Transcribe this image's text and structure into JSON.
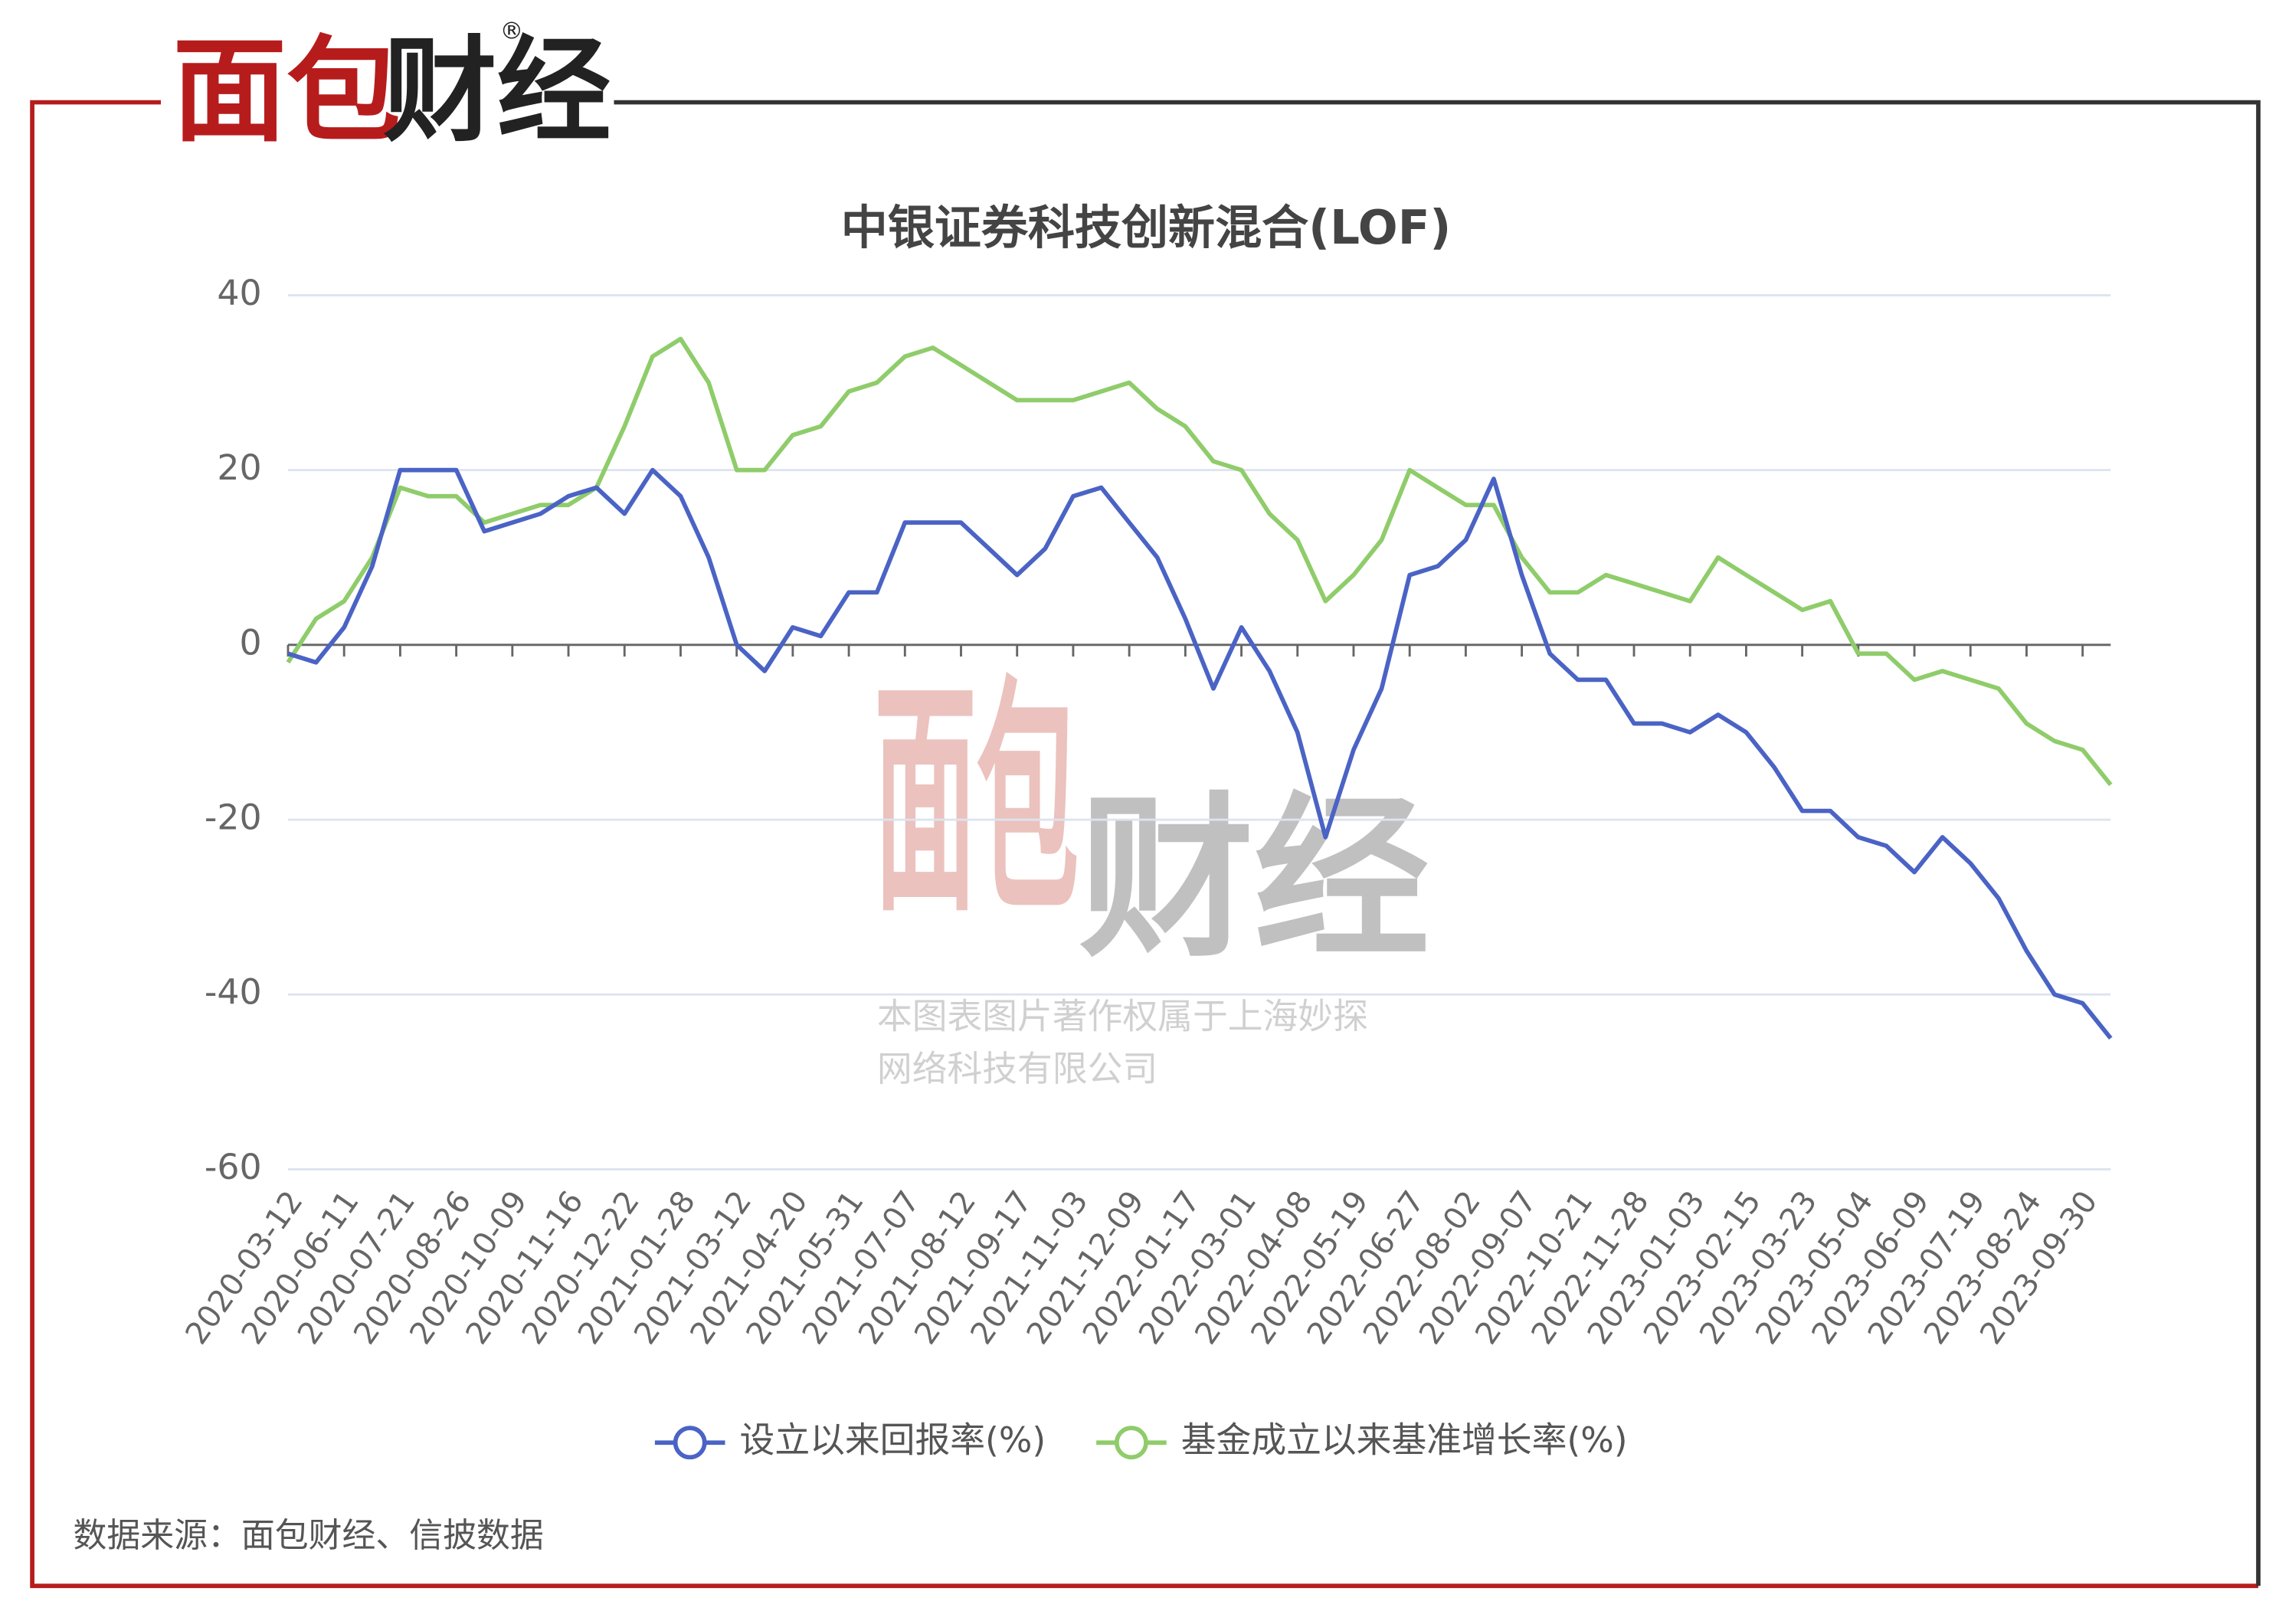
{
  "brand": {
    "red": "面包",
    "dark": "财经",
    "mark": "®"
  },
  "watermark_lines": [
    "本图表图片著作权属于上海妙探",
    "网络科技有限公司"
  ],
  "source": "数据来源：面包财经、信披数据",
  "chart_data": {
    "type": "line",
    "title": "中银证券科技创新混合(LOF)",
    "categories": [
      "2020-03-12",
      null,
      "2020-06-11",
      null,
      "2020-07-21",
      null,
      "2020-08-26",
      null,
      "2020-10-09",
      null,
      "2020-11-16",
      null,
      "2020-12-22",
      null,
      "2021-01-28",
      null,
      "2021-03-12",
      null,
      "2021-04-20",
      null,
      "2021-05-31",
      null,
      "2021-07-07",
      null,
      "2021-08-12",
      null,
      "2021-09-17",
      null,
      "2021-11-03",
      null,
      "2021-12-09",
      null,
      "2022-01-17",
      null,
      "2022-03-01",
      null,
      "2022-04-08",
      null,
      "2022-05-19",
      null,
      "2022-06-27",
      null,
      "2022-08-02",
      null,
      "2022-09-07",
      null,
      "2022-10-21",
      null,
      "2022-11-28",
      null,
      "2023-01-03",
      null,
      "2023-02-15",
      null,
      "2023-03-23",
      null,
      "2023-05-04",
      null,
      "2023-06-09",
      null,
      "2023-07-19",
      null,
      "2023-08-24",
      null,
      "2023-09-30",
      null
    ],
    "series": [
      {
        "name": "设立以来回报率(%)",
        "color": "#4a63c5",
        "values": [
          -1,
          -2,
          2,
          9,
          20,
          20,
          20,
          13,
          14,
          15,
          17,
          18,
          15,
          20,
          17,
          10,
          0,
          -3,
          2,
          1,
          6,
          6,
          14,
          14,
          14,
          11,
          8,
          11,
          17,
          18,
          14,
          10,
          3,
          -5,
          2,
          -3,
          -10,
          -22,
          -12,
          -5,
          8,
          9,
          12,
          19,
          8,
          -1,
          -4,
          -4,
          -9,
          -9,
          -10,
          -8,
          -10,
          -14,
          -19,
          -19,
          -22,
          -23,
          -26,
          -22,
          -25,
          -29,
          -35,
          -40,
          -41,
          -45
        ]
      },
      {
        "name": "基金成立以来基准增长率(%)",
        "color": "#8fcc6a",
        "values": [
          -2,
          3,
          5,
          10,
          18,
          17,
          17,
          14,
          15,
          16,
          16,
          18,
          25,
          33,
          35,
          30,
          20,
          20,
          24,
          25,
          29,
          30,
          33,
          34,
          32,
          30,
          28,
          28,
          28,
          29,
          30,
          27,
          25,
          21,
          20,
          15,
          12,
          5,
          8,
          12,
          20,
          18,
          16,
          16,
          10,
          6,
          6,
          8,
          7,
          6,
          5,
          10,
          8,
          6,
          4,
          5,
          -1,
          -1,
          -4,
          -3,
          -4,
          -5,
          -9,
          -11,
          -12,
          -16
        ]
      }
    ],
    "ylim": [
      -60,
      40
    ],
    "yticks": [
      -60,
      -40,
      -20,
      0,
      20,
      40
    ],
    "grid": true
  }
}
